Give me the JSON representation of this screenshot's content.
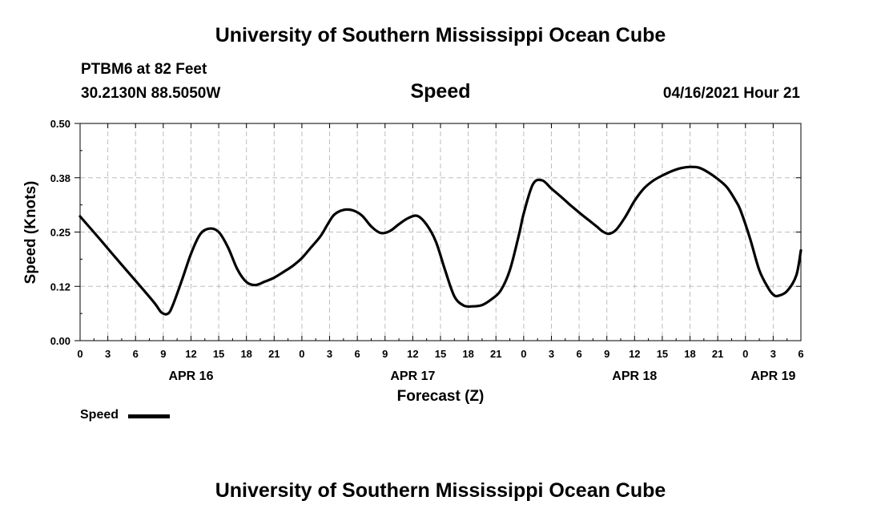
{
  "header": {
    "title": "University of Southern Mississippi Ocean Cube",
    "station": "PTBM6 at 82 Feet",
    "coords": "30.2130N  88.5050W",
    "datetime": "04/16/2021 Hour 21"
  },
  "footer": {
    "title": "University of Southern Mississippi Ocean Cube"
  },
  "chart_data": {
    "type": "line",
    "title": "Speed",
    "xlabel": "Forecast (Z)",
    "ylabel": "Speed (Knots)",
    "xlim": [
      0,
      78
    ],
    "ylim": [
      0.0,
      0.5
    ],
    "grid": true,
    "y_ticks": [
      {
        "value": 0.0,
        "label": "0.00"
      },
      {
        "value": 0.125,
        "label": "0.12"
      },
      {
        "value": 0.25,
        "label": "0.25"
      },
      {
        "value": 0.375,
        "label": "0.38"
      },
      {
        "value": 0.5,
        "label": "0.50"
      }
    ],
    "x_ticks": [
      {
        "value": 0,
        "label": "0"
      },
      {
        "value": 3,
        "label": "3"
      },
      {
        "value": 6,
        "label": "6"
      },
      {
        "value": 9,
        "label": "9"
      },
      {
        "value": 12,
        "label": "12"
      },
      {
        "value": 15,
        "label": "15"
      },
      {
        "value": 18,
        "label": "18"
      },
      {
        "value": 21,
        "label": "21"
      },
      {
        "value": 24,
        "label": "0"
      },
      {
        "value": 27,
        "label": "3"
      },
      {
        "value": 30,
        "label": "6"
      },
      {
        "value": 33,
        "label": "9"
      },
      {
        "value": 36,
        "label": "12"
      },
      {
        "value": 39,
        "label": "15"
      },
      {
        "value": 42,
        "label": "18"
      },
      {
        "value": 45,
        "label": "21"
      },
      {
        "value": 48,
        "label": "0"
      },
      {
        "value": 51,
        "label": "3"
      },
      {
        "value": 54,
        "label": "6"
      },
      {
        "value": 57,
        "label": "9"
      },
      {
        "value": 60,
        "label": "12"
      },
      {
        "value": 63,
        "label": "15"
      },
      {
        "value": 66,
        "label": "18"
      },
      {
        "value": 69,
        "label": "21"
      },
      {
        "value": 72,
        "label": "0"
      },
      {
        "value": 75,
        "label": "3"
      },
      {
        "value": 78,
        "label": "6"
      }
    ],
    "day_labels": [
      {
        "value": 12,
        "label": "APR 16"
      },
      {
        "value": 36,
        "label": "APR 17"
      },
      {
        "value": 60,
        "label": "APR 18"
      },
      {
        "value": 75,
        "label": "APR 19"
      }
    ],
    "legend": "Speed",
    "series": [
      {
        "name": "Speed",
        "x": [
          0,
          2,
          4,
          6,
          8,
          8.8,
          9.5,
          10,
          11,
          12,
          13,
          14,
          15,
          16,
          17,
          18,
          19,
          20,
          21,
          22,
          23,
          24,
          25,
          26,
          26.8,
          27.5,
          28.5,
          29.5,
          30.5,
          31.5,
          32.5,
          33.5,
          34.5,
          35.5,
          36.5,
          37.5,
          38.5,
          39.5,
          40.5,
          41.5,
          42.5,
          43.5,
          44.5,
          45.5,
          46.5,
          47.5,
          48,
          49,
          50,
          51,
          52,
          53,
          54,
          55,
          56,
          56.5,
          57.2,
          58,
          59,
          60,
          61,
          62,
          63,
          64,
          65,
          66,
          67,
          68,
          69,
          70,
          71,
          71.5,
          72.5,
          73.5,
          74.5,
          75,
          75.5,
          76.5,
          77.5,
          78
        ],
        "values": [
          0.286,
          0.237,
          0.187,
          0.138,
          0.088,
          0.065,
          0.062,
          0.08,
          0.138,
          0.2,
          0.245,
          0.258,
          0.25,
          0.215,
          0.165,
          0.135,
          0.128,
          0.136,
          0.145,
          0.158,
          0.172,
          0.19,
          0.215,
          0.24,
          0.268,
          0.29,
          0.301,
          0.3,
          0.288,
          0.263,
          0.248,
          0.252,
          0.268,
          0.282,
          0.287,
          0.267,
          0.228,
          0.162,
          0.102,
          0.081,
          0.079,
          0.082,
          0.095,
          0.115,
          0.162,
          0.245,
          0.292,
          0.36,
          0.369,
          0.35,
          0.332,
          0.313,
          0.295,
          0.278,
          0.261,
          0.252,
          0.246,
          0.255,
          0.285,
          0.322,
          0.35,
          0.368,
          0.38,
          0.39,
          0.397,
          0.4,
          0.398,
          0.387,
          0.372,
          0.353,
          0.32,
          0.298,
          0.235,
          0.162,
          0.12,
          0.106,
          0.103,
          0.114,
          0.15,
          0.208
        ]
      }
    ]
  }
}
